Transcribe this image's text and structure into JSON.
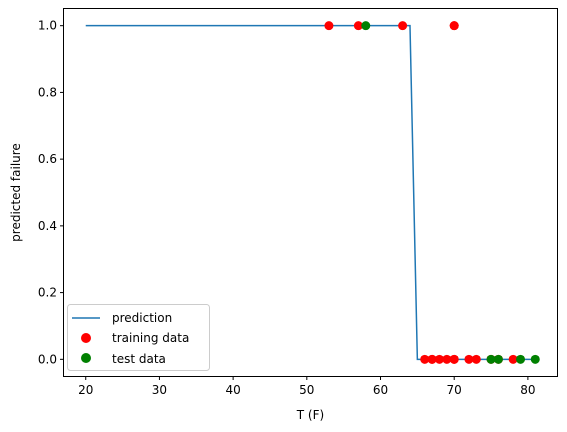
{
  "chart_data": {
    "type": "scatter",
    "xlabel": "T (F)",
    "ylabel": "predicted failure",
    "xlim": [
      17.05,
      83.95
    ],
    "ylim": [
      -0.05,
      1.05
    ],
    "xticks": [
      20,
      30,
      40,
      50,
      60,
      70,
      80
    ],
    "yticks": [
      0.0,
      0.2,
      0.4,
      0.6,
      0.8,
      1.0
    ],
    "xtick_labels": [
      "20",
      "30",
      "40",
      "50",
      "60",
      "70",
      "80"
    ],
    "ytick_labels": [
      "0.0",
      "0.2",
      "0.4",
      "0.6",
      "0.8",
      "1.0"
    ],
    "grid": false,
    "legend_position": "lower-left",
    "series": [
      {
        "name": "prediction",
        "kind": "line",
        "color": "#1f77b4",
        "x": [
          20,
          64,
          64.5,
          65,
          81
        ],
        "y": [
          1,
          1,
          0.5,
          0,
          0
        ]
      },
      {
        "name": "training data",
        "kind": "scatter",
        "color": "#ff0000",
        "x": [
          53,
          57,
          63,
          70,
          70,
          66,
          67,
          67,
          68,
          69,
          70,
          70,
          72,
          73,
          75,
          76,
          78
        ],
        "y": [
          1,
          1,
          1,
          1,
          1,
          0,
          0,
          0,
          0,
          0,
          0,
          0,
          0,
          0,
          0,
          0,
          0
        ]
      },
      {
        "name": "test data",
        "kind": "scatter",
        "color": "#008000",
        "x": [
          58,
          75,
          76,
          79,
          81
        ],
        "y": [
          1,
          0,
          0,
          0,
          0
        ]
      }
    ]
  }
}
